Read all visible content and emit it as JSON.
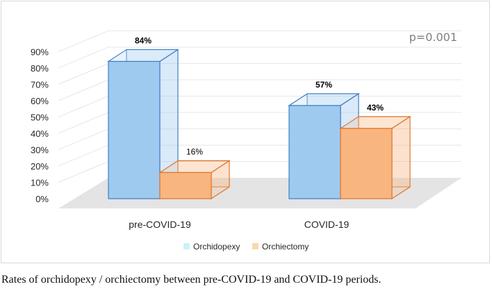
{
  "chart_data": {
    "type": "bar",
    "style": "3d-clustered-column",
    "categories": [
      "pre-COVID-19",
      "COVID-19"
    ],
    "series": [
      {
        "name": "Orchidopexy",
        "values": [
          84,
          57
        ],
        "labels": [
          "84%",
          "57%"
        ],
        "label_bold": [
          true,
          true
        ],
        "color": "#9fcaf0",
        "edge": "#3f7fc4",
        "legend_color": "#c9f4f8"
      },
      {
        "name": "Orchiectomy",
        "values": [
          16,
          43
        ],
        "labels": [
          "16%",
          "43%"
        ],
        "label_bold": [
          false,
          true
        ],
        "color": "#f8b57f",
        "edge": "#e0762a",
        "legend_color": "#fcd6ae"
      }
    ],
    "yticks": [
      "0%",
      "10%",
      "20%",
      "30%",
      "40%",
      "50%",
      "60%",
      "70%",
      "80%",
      "90%"
    ],
    "ylim": [
      0,
      90
    ],
    "annotation": "p=0.001",
    "legend_position": "bottom-center"
  },
  "caption": "Rates of orchidopexy / orchiectomy between pre-COVID-19 and COVID-19 periods."
}
